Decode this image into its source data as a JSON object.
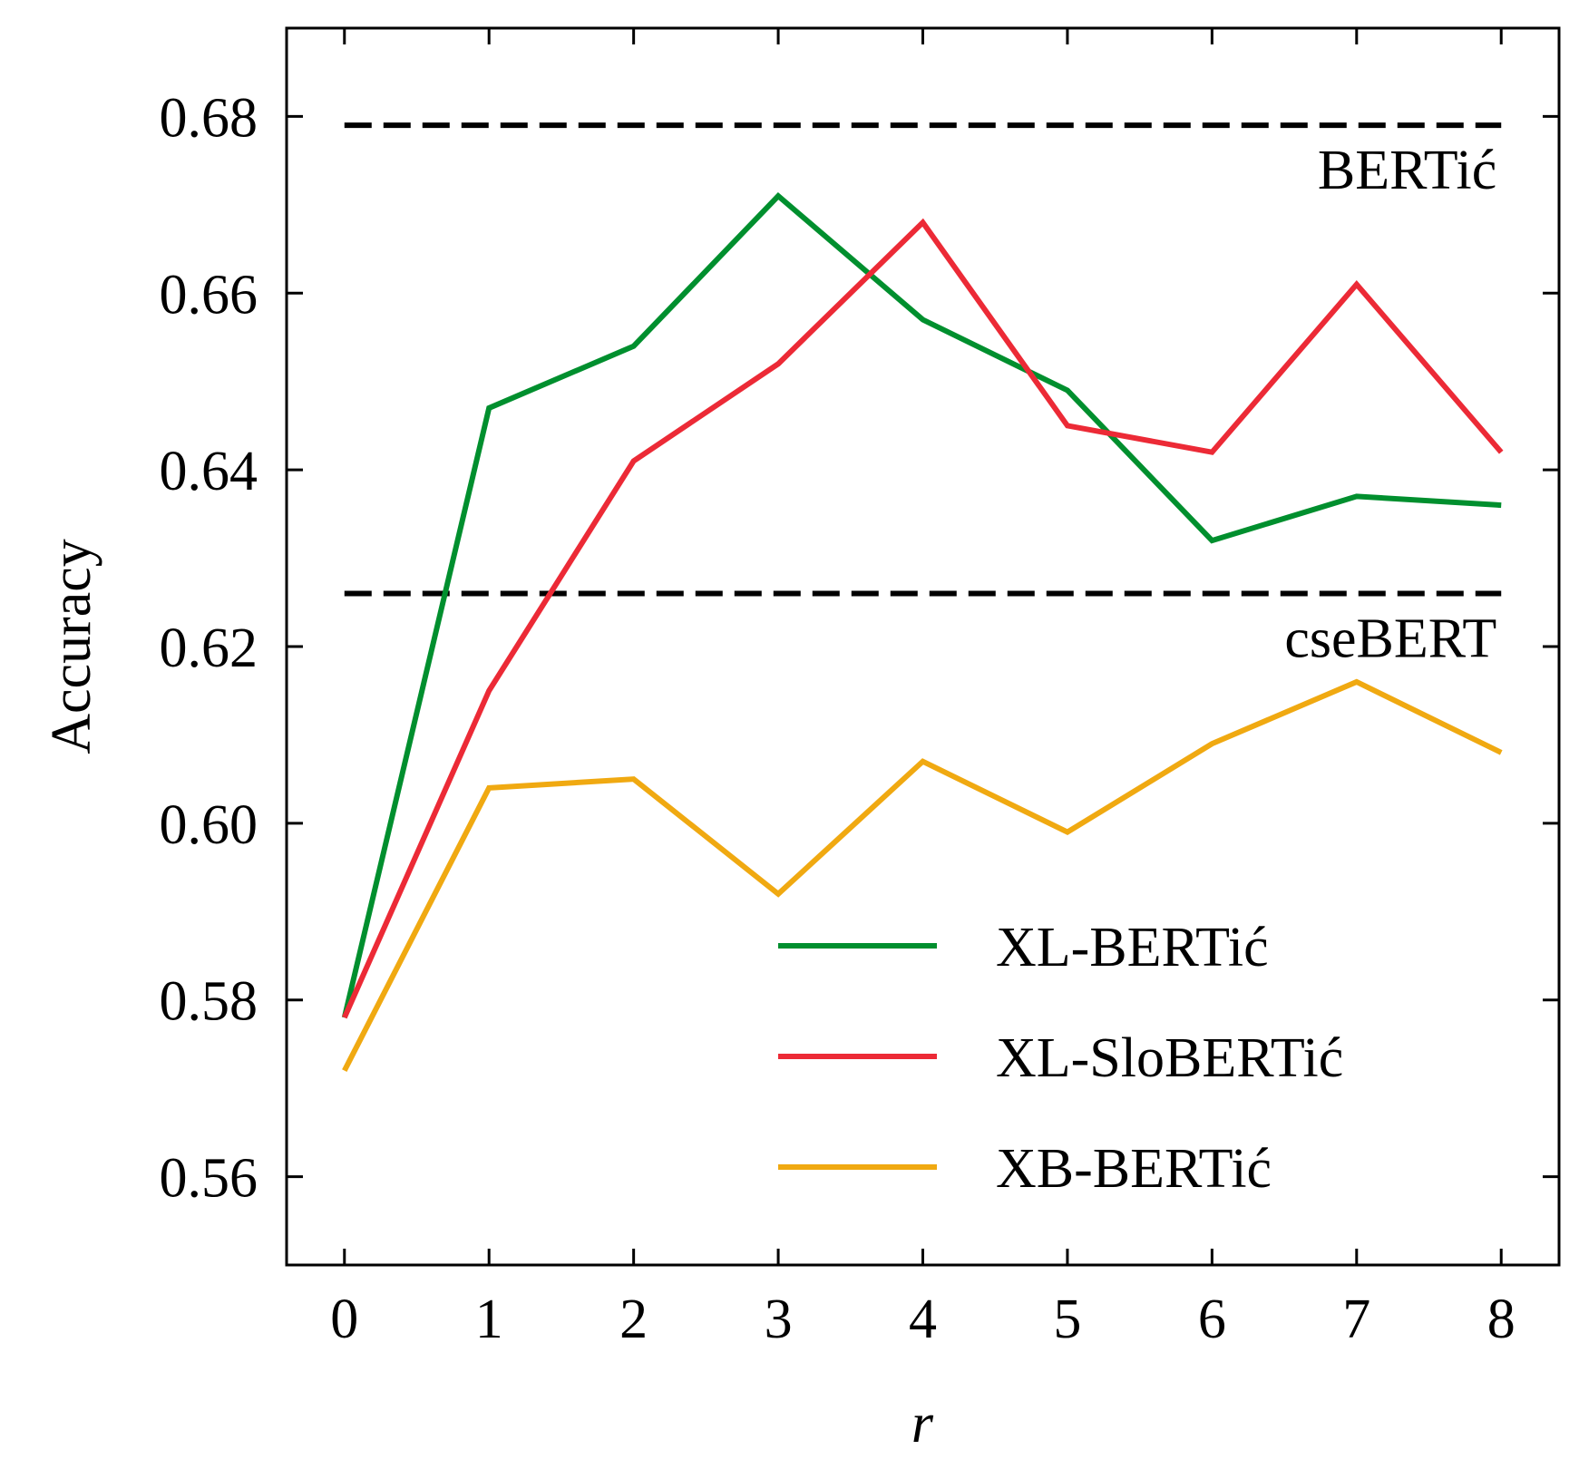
{
  "chart_data": {
    "type": "line",
    "xlabel": "r",
    "ylabel": "Accuracy",
    "x": [
      0,
      1,
      2,
      3,
      4,
      5,
      6,
      7,
      8
    ],
    "series": [
      {
        "name": "XL-BERTić",
        "color": "#008f2e",
        "values": [
          0.578,
          0.647,
          0.654,
          0.671,
          0.657,
          0.649,
          0.632,
          0.637,
          0.636
        ]
      },
      {
        "name": "XL-SloBERTić",
        "color": "#ec2a36",
        "values": [
          0.578,
          0.615,
          0.641,
          0.652,
          0.668,
          0.645,
          0.642,
          0.661,
          0.642
        ]
      },
      {
        "name": "XB-BERTić",
        "color": "#f0a911",
        "values": [
          0.572,
          0.604,
          0.605,
          0.592,
          0.607,
          0.599,
          0.609,
          0.616,
          0.608
        ]
      }
    ],
    "reference_lines": [
      {
        "name": "BERTić",
        "value": 0.679,
        "color": "#000000"
      },
      {
        "name": "cseBERT",
        "value": 0.626,
        "color": "#000000"
      }
    ],
    "xlim": [
      -0.4,
      8.4
    ],
    "ylim": [
      0.55,
      0.69
    ],
    "xticks": [
      0,
      1,
      2,
      3,
      4,
      5,
      6,
      7,
      8
    ],
    "yticks": [
      0.56,
      0.58,
      {
        "value": 0.6,
        "label": "0.60"
      },
      0.62,
      0.64,
      0.66,
      0.68
    ],
    "legend": "lower right",
    "grid": false
  }
}
